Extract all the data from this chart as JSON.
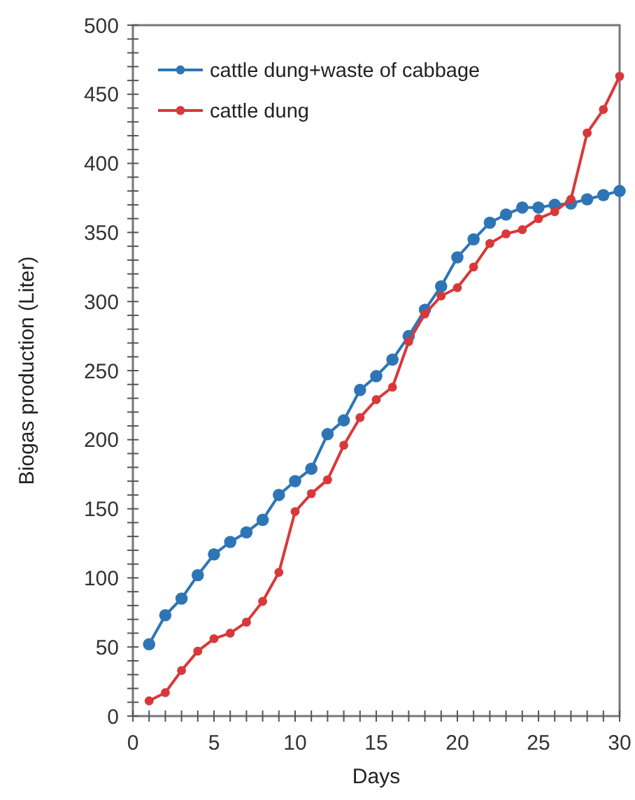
{
  "chart_data": {
    "type": "line",
    "xlabel": "Days",
    "ylabel": "Biogas production (Liter)",
    "x": [
      1,
      2,
      3,
      4,
      5,
      6,
      7,
      8,
      9,
      10,
      11,
      12,
      13,
      14,
      15,
      16,
      17,
      18,
      19,
      20,
      21,
      22,
      23,
      24,
      25,
      26,
      27,
      28,
      29,
      30
    ],
    "series": [
      {
        "name": "cattle dung+waste of cabbage",
        "color": "#2e75b6",
        "values": [
          52,
          73,
          85,
          102,
          117,
          126,
          133,
          142,
          160,
          170,
          179,
          204,
          214,
          236,
          246,
          258,
          275,
          294,
          311,
          332,
          345,
          357,
          363,
          368,
          368,
          370,
          371,
          374,
          377,
          380
        ]
      },
      {
        "name": "cattle dung",
        "color": "#d9383a",
        "values": [
          11,
          17,
          33,
          47,
          56,
          60,
          68,
          83,
          104,
          148,
          161,
          171,
          196,
          216,
          229,
          238,
          271,
          291,
          304,
          310,
          325,
          342,
          349,
          352,
          360,
          365,
          374,
          422,
          439,
          463
        ]
      }
    ],
    "xlim": [
      0,
      30
    ],
    "xticks": [
      0,
      {
        "value": 1,
        "label": null
      },
      {
        "value": 2,
        "label": null
      },
      {
        "value": 3,
        "label": null
      },
      {
        "value": 4,
        "label": null
      },
      5,
      {
        "value": 6,
        "label": null
      },
      {
        "value": 7,
        "label": null
      },
      {
        "value": 8,
        "label": null
      },
      {
        "value": 9,
        "label": null
      },
      10,
      {
        "value": 11,
        "label": null
      },
      {
        "value": 12,
        "label": null
      },
      {
        "value": 13,
        "label": null
      },
      {
        "value": 14,
        "label": null
      },
      15,
      {
        "value": 16,
        "label": null
      },
      {
        "value": 17,
        "label": null
      },
      {
        "value": 18,
        "label": null
      },
      {
        "value": 19,
        "label": null
      },
      20,
      {
        "value": 21,
        "label": null
      },
      {
        "value": 22,
        "label": null
      },
      {
        "value": 23,
        "label": null
      },
      {
        "value": 24,
        "label": null
      },
      25,
      {
        "value": 26,
        "label": null
      },
      {
        "value": 27,
        "label": null
      },
      {
        "value": 28,
        "label": null
      },
      {
        "value": 29,
        "label": null
      },
      30
    ],
    "ylim": [
      0,
      500
    ],
    "yticks": [
      0,
      {
        "value": 10,
        "label": null
      },
      {
        "value": 20,
        "label": null
      },
      {
        "value": 30,
        "label": null
      },
      {
        "value": 40,
        "label": null
      },
      50,
      {
        "value": 60,
        "label": null
      },
      {
        "value": 70,
        "label": null
      },
      {
        "value": 80,
        "label": null
      },
      {
        "value": 90,
        "label": null
      },
      100,
      {
        "value": 110,
        "label": null
      },
      {
        "value": 120,
        "label": null
      },
      {
        "value": 130,
        "label": null
      },
      {
        "value": 140,
        "label": null
      },
      150,
      {
        "value": 160,
        "label": null
      },
      {
        "value": 170,
        "label": null
      },
      {
        "value": 180,
        "label": null
      },
      {
        "value": 190,
        "label": null
      },
      200,
      {
        "value": 210,
        "label": null
      },
      {
        "value": 220,
        "label": null
      },
      {
        "value": 230,
        "label": null
      },
      {
        "value": 240,
        "label": null
      },
      250,
      {
        "value": 260,
        "label": null
      },
      {
        "value": 270,
        "label": null
      },
      {
        "value": 280,
        "label": null
      },
      {
        "value": 290,
        "label": null
      },
      300,
      {
        "value": 310,
        "label": null
      },
      {
        "value": 320,
        "label": null
      },
      {
        "value": 330,
        "label": null
      },
      {
        "value": 340,
        "label": null
      },
      350,
      {
        "value": 360,
        "label": null
      },
      {
        "value": 370,
        "label": null
      },
      {
        "value": 380,
        "label": null
      },
      {
        "value": 390,
        "label": null
      },
      400,
      {
        "value": 410,
        "label": null
      },
      {
        "value": 420,
        "label": null
      },
      {
        "value": 430,
        "label": null
      },
      {
        "value": 440,
        "label": null
      },
      450,
      {
        "value": 460,
        "label": null
      },
      {
        "value": 470,
        "label": null
      },
      {
        "value": 480,
        "label": null
      },
      {
        "value": 490,
        "label": null
      },
      500
    ],
    "grid": false,
    "legend": "top left",
    "marker": "circle",
    "line_style": "solid"
  }
}
